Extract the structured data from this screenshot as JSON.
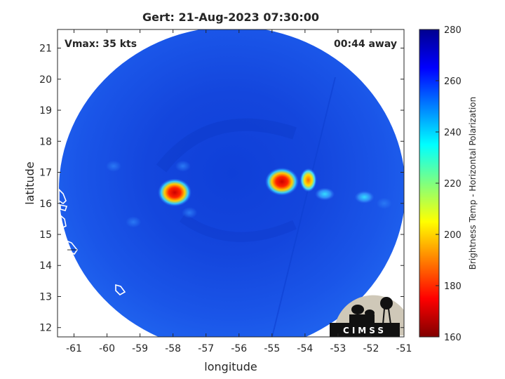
{
  "title": "Gert: 21-Aug-2023 07:30:00",
  "annotations": {
    "vmax": "Vmax: 35 kts",
    "time_away": "00:44 away"
  },
  "axes": {
    "xlabel": "longitude",
    "ylabel": "latitude",
    "xlim": [
      -61.5,
      -51
    ],
    "ylim": [
      11.7,
      21.6
    ],
    "xticks": [
      "-61",
      "-60",
      "-59",
      "-58",
      "-57",
      "-56",
      "-55",
      "-54",
      "-53",
      "-52",
      "-51"
    ],
    "yticks": [
      "12",
      "13",
      "14",
      "15",
      "16",
      "17",
      "18",
      "19",
      "20",
      "21"
    ]
  },
  "colorbar": {
    "label": "Brightness Temp - Horizontal Polarization",
    "range": [
      160,
      280
    ],
    "ticks": [
      "160",
      "180",
      "200",
      "220",
      "240",
      "260",
      "280"
    ],
    "colormap": "jet"
  },
  "logo": {
    "text": "CIMSS"
  },
  "colors": {
    "background_blue": "#1a55e8",
    "land_outline": "#ffffff"
  },
  "chart_data": {
    "type": "heatmap",
    "title": "Gert: 21-Aug-2023 07:30:00",
    "xlabel": "longitude",
    "ylabel": "latitude",
    "xlim": [
      -61.5,
      -51
    ],
    "ylim": [
      11.7,
      21.6
    ],
    "colorbar_label": "Brightness Temp - Horizontal Polarization",
    "colorbar_range": [
      160,
      280
    ],
    "swath_center": {
      "lon": -56.3,
      "lat": 16.3
    },
    "background_tb": 258,
    "features": [
      {
        "lon": -57.95,
        "lat": 16.35,
        "tb_min": 180
      },
      {
        "lon": -54.7,
        "lat": 16.7,
        "tb_min": 180
      },
      {
        "lon": -53.9,
        "lat": 16.75,
        "tb_min": 195
      },
      {
        "lon": -53.4,
        "lat": 16.3,
        "tb_min": 230
      },
      {
        "lon": -52.2,
        "lat": 16.2,
        "tb_min": 240
      },
      {
        "lon": -51.6,
        "lat": 16.0,
        "tb_min": 245
      },
      {
        "lon": -59.2,
        "lat": 15.4,
        "tb_min": 242
      },
      {
        "lon": -57.5,
        "lat": 15.7,
        "tb_min": 245
      },
      {
        "lon": -59.8,
        "lat": 17.2,
        "tb_min": 248
      },
      {
        "lon": -57.7,
        "lat": 17.2,
        "tb_min": 250
      }
    ]
  }
}
